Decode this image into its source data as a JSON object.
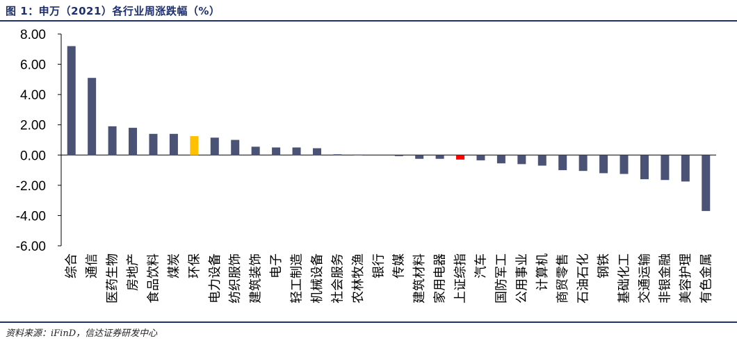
{
  "header": {
    "title": "图 1：申万（2021）各行业周涨跌幅（%）"
  },
  "footer": {
    "source": "资料来源：iFinD，信达证券研发中心"
  },
  "colors": {
    "default_bar": "#4a5275",
    "highlight_bar": "#ffc000",
    "index_bar": "#ff0000",
    "rule": "#1e2f6e"
  },
  "chart_data": {
    "type": "bar",
    "title": "申万（2021）各行业周涨跌幅（%）",
    "categories": [
      "综合",
      "通信",
      "医药生物",
      "房地产",
      "食品饮料",
      "煤炭",
      "环保",
      "电力设备",
      "纺织服饰",
      "建筑装饰",
      "电子",
      "轻工制造",
      "机械设备",
      "社会服务",
      "农林牧渔",
      "银行",
      "传媒",
      "建筑材料",
      "家用电器",
      "上证综指",
      "汽车",
      "国防军工",
      "公用事业",
      "计算机",
      "商贸零售",
      "石油石化",
      "钢铁",
      "基础化工",
      "交通运输",
      "非银金融",
      "美容护理",
      "有色金属"
    ],
    "values": [
      7.2,
      5.1,
      1.9,
      1.8,
      1.4,
      1.4,
      1.25,
      1.15,
      1.0,
      0.55,
      0.5,
      0.5,
      0.45,
      0.05,
      0.03,
      0.0,
      -0.07,
      -0.25,
      -0.25,
      -0.3,
      -0.35,
      -0.55,
      -0.6,
      -0.7,
      -1.0,
      -1.05,
      -1.2,
      -1.25,
      -1.6,
      -1.65,
      -1.75,
      -3.7
    ],
    "highlight": {
      "环保": "highlight_bar",
      "上证综指": "index_bar"
    },
    "ylim": [
      -6,
      8
    ],
    "yticks": [
      "8.00",
      "6.00",
      "4.00",
      "2.00",
      "0.00",
      "-2.00",
      "-4.00",
      "-6.00"
    ],
    "grid": false,
    "legend": "none"
  }
}
